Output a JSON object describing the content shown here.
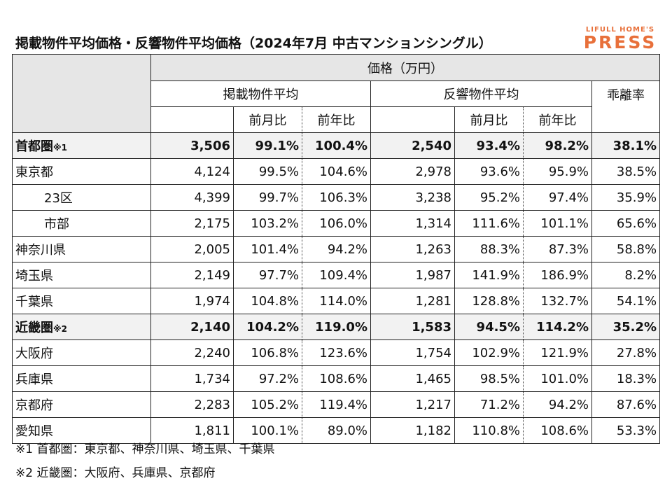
{
  "title": "掲載物件平均価格・反響物件平均価格（2024年7月 中古マンションシングル）",
  "logo": {
    "top": "LIFULL HOME'S",
    "main": "PRESS",
    "color": "#e8703a"
  },
  "header": {
    "price": "価格（万円）",
    "listed_avg": "掲載物件平均",
    "inquiry_avg": "反響物件平均",
    "divergence": "乖離率",
    "mom": "前月比",
    "yoy": "前年比"
  },
  "rows": [
    {
      "label": "首都圏",
      "note": "※1",
      "bold": true,
      "listed": "3,506",
      "listed_mom": "99.1%",
      "listed_yoy": "100.4%",
      "inquiry": "2,540",
      "inquiry_mom": "93.4%",
      "inquiry_yoy": "98.2%",
      "divergence": "38.1%"
    },
    {
      "label": "東京都",
      "note": "",
      "bold": false,
      "listed": "4,124",
      "listed_mom": "99.5%",
      "listed_yoy": "104.6%",
      "inquiry": "2,978",
      "inquiry_mom": "93.6%",
      "inquiry_yoy": "95.9%",
      "divergence": "38.5%"
    },
    {
      "label": "23区",
      "note": "",
      "bold": false,
      "indent": true,
      "listed": "4,399",
      "listed_mom": "99.7%",
      "listed_yoy": "106.3%",
      "inquiry": "3,238",
      "inquiry_mom": "95.2%",
      "inquiry_yoy": "97.4%",
      "divergence": "35.9%"
    },
    {
      "label": "市部",
      "note": "",
      "bold": false,
      "indent": true,
      "listed": "2,175",
      "listed_mom": "103.2%",
      "listed_yoy": "106.0%",
      "inquiry": "1,314",
      "inquiry_mom": "111.6%",
      "inquiry_yoy": "101.1%",
      "divergence": "65.6%"
    },
    {
      "label": "神奈川県",
      "note": "",
      "bold": false,
      "listed": "2,005",
      "listed_mom": "101.4%",
      "listed_yoy": "94.2%",
      "inquiry": "1,263",
      "inquiry_mom": "88.3%",
      "inquiry_yoy": "87.3%",
      "divergence": "58.8%"
    },
    {
      "label": "埼玉県",
      "note": "",
      "bold": false,
      "listed": "2,149",
      "listed_mom": "97.7%",
      "listed_yoy": "109.4%",
      "inquiry": "1,987",
      "inquiry_mom": "141.9%",
      "inquiry_yoy": "186.9%",
      "divergence": "8.2%"
    },
    {
      "label": "千葉県",
      "note": "",
      "bold": false,
      "listed": "1,974",
      "listed_mom": "104.8%",
      "listed_yoy": "114.0%",
      "inquiry": "1,281",
      "inquiry_mom": "128.8%",
      "inquiry_yoy": "132.7%",
      "divergence": "54.1%"
    },
    {
      "label": "近畿圏",
      "note": "※2",
      "bold": true,
      "listed": "2,140",
      "listed_mom": "104.2%",
      "listed_yoy": "119.0%",
      "inquiry": "1,583",
      "inquiry_mom": "94.5%",
      "inquiry_yoy": "114.2%",
      "divergence": "35.2%"
    },
    {
      "label": "大阪府",
      "note": "",
      "bold": false,
      "listed": "2,240",
      "listed_mom": "106.8%",
      "listed_yoy": "123.6%",
      "inquiry": "1,754",
      "inquiry_mom": "102.9%",
      "inquiry_yoy": "121.9%",
      "divergence": "27.8%"
    },
    {
      "label": "兵庫県",
      "note": "",
      "bold": false,
      "listed": "1,734",
      "listed_mom": "97.2%",
      "listed_yoy": "108.6%",
      "inquiry": "1,465",
      "inquiry_mom": "98.5%",
      "inquiry_yoy": "101.0%",
      "divergence": "18.3%"
    },
    {
      "label": "京都府",
      "note": "",
      "bold": false,
      "listed": "2,283",
      "listed_mom": "105.2%",
      "listed_yoy": "119.4%",
      "inquiry": "1,217",
      "inquiry_mom": "71.2%",
      "inquiry_yoy": "94.2%",
      "divergence": "87.6%"
    },
    {
      "label": "愛知県",
      "note": "",
      "bold": false,
      "listed": "1,811",
      "listed_mom": "100.1%",
      "listed_yoy": "89.0%",
      "inquiry": "1,182",
      "inquiry_mom": "110.8%",
      "inquiry_yoy": "108.6%",
      "divergence": "53.3%"
    }
  ],
  "footnotes": [
    "※1 首都圏：東京都、神奈川県、埼玉県、千葉県",
    "※2 近畿圏：大阪府、兵庫県、京都府"
  ]
}
